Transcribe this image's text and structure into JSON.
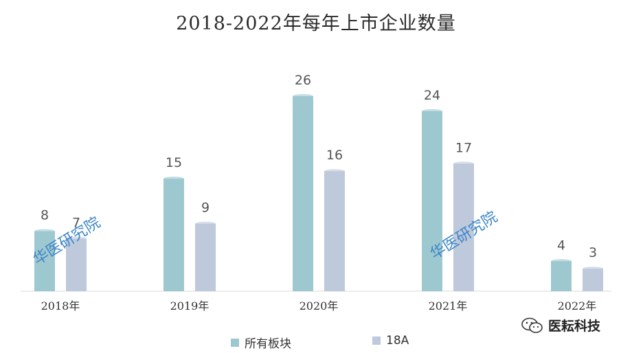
{
  "title": "2018-2022年每年上市企业数量",
  "chart_data": {
    "type": "bar",
    "categories": [
      "2018年",
      "2019年",
      "2020年",
      "2021年",
      "2022年"
    ],
    "series": [
      {
        "name": "所有板块",
        "values": [
          8,
          15,
          26,
          24,
          4
        ],
        "color": "#9ec8d0"
      },
      {
        "name": "18A",
        "values": [
          7,
          9,
          16,
          17,
          3
        ],
        "color": "#bec9dc"
      }
    ],
    "ylim": [
      0,
      26
    ],
    "grid": false,
    "legend_position": "bottom"
  },
  "watermarks": [
    "华医研究院",
    "华医研究院"
  ],
  "logo": {
    "text": "医耘科技",
    "icon": "wechat-icon"
  }
}
